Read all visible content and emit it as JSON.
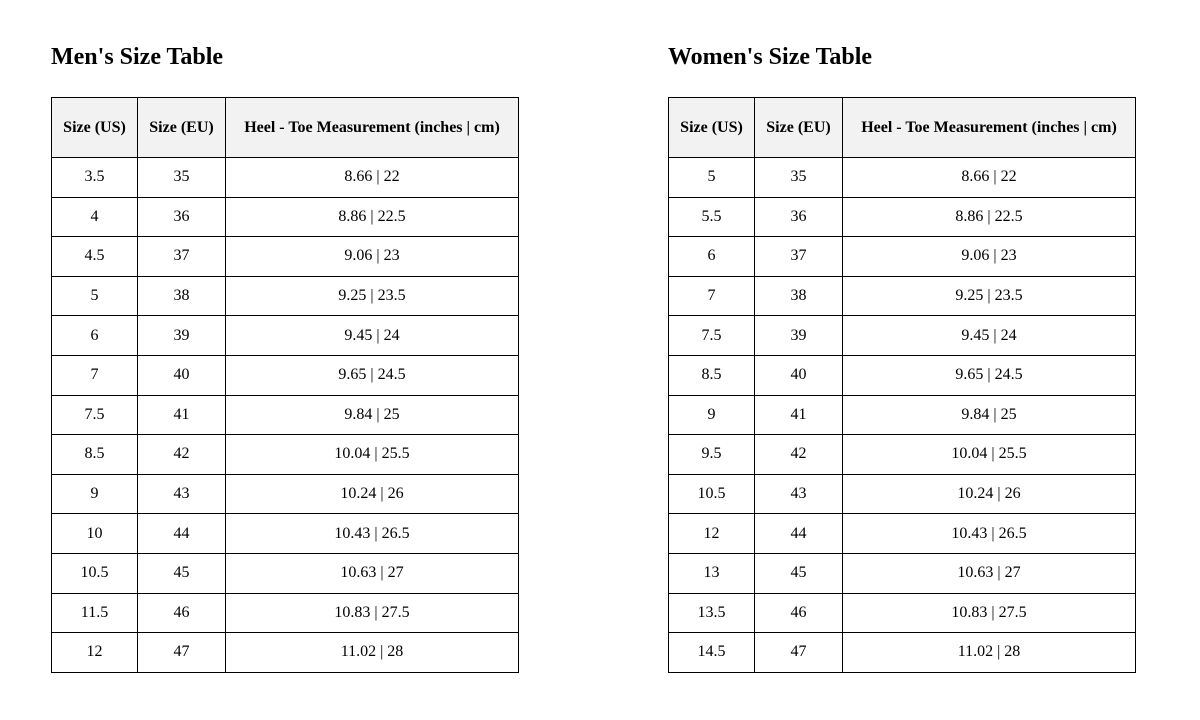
{
  "men": {
    "title": "Men's Size Table",
    "headers": [
      "Size (US)",
      "Size (EU)",
      "Heel - Toe Measurement (inches | cm)"
    ],
    "rows": [
      [
        "3.5",
        "35",
        "8.66 | 22"
      ],
      [
        "4",
        "36",
        "8.86 | 22.5"
      ],
      [
        "4.5",
        "37",
        "9.06 | 23"
      ],
      [
        "5",
        "38",
        "9.25 | 23.5"
      ],
      [
        "6",
        "39",
        "9.45 | 24"
      ],
      [
        "7",
        "40",
        "9.65 | 24.5"
      ],
      [
        "7.5",
        "41",
        "9.84 | 25"
      ],
      [
        "8.5",
        "42",
        "10.04 | 25.5"
      ],
      [
        "9",
        "43",
        "10.24 | 26"
      ],
      [
        "10",
        "44",
        "10.43 | 26.5"
      ],
      [
        "10.5",
        "45",
        "10.63 | 27"
      ],
      [
        "11.5",
        "46",
        "10.83 | 27.5"
      ],
      [
        "12",
        "47",
        "11.02 | 28"
      ]
    ]
  },
  "women": {
    "title": "Women's Size Table",
    "headers": [
      "Size (US)",
      "Size (EU)",
      "Heel - Toe Measurement (inches | cm)"
    ],
    "rows": [
      [
        "5",
        "35",
        "8.66 | 22"
      ],
      [
        "5.5",
        "36",
        "8.86 | 22.5"
      ],
      [
        "6",
        "37",
        "9.06 | 23"
      ],
      [
        "7",
        "38",
        "9.25 | 23.5"
      ],
      [
        "7.5",
        "39",
        "9.45 | 24"
      ],
      [
        "8.5",
        "40",
        "9.65 | 24.5"
      ],
      [
        "9",
        "41",
        "9.84 | 25"
      ],
      [
        "9.5",
        "42",
        "10.04 | 25.5"
      ],
      [
        "10.5",
        "43",
        "10.24 | 26"
      ],
      [
        "12",
        "44",
        "10.43 | 26.5"
      ],
      [
        "13",
        "45",
        "10.63 | 27"
      ],
      [
        "13.5",
        "46",
        "10.83 | 27.5"
      ],
      [
        "14.5",
        "47",
        "11.02 | 28"
      ]
    ]
  }
}
